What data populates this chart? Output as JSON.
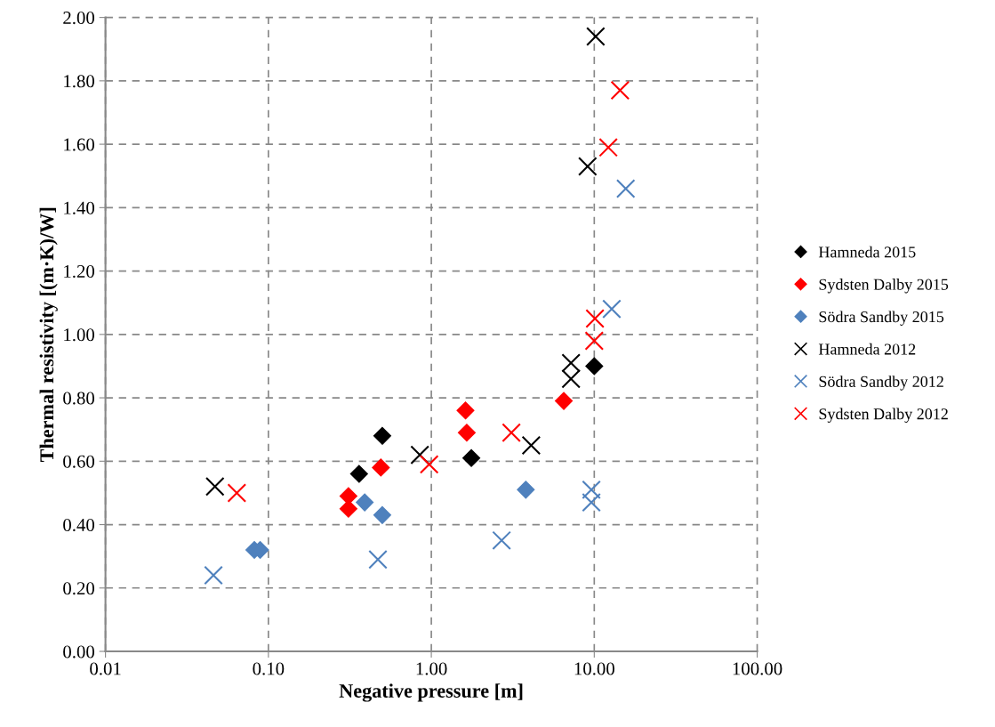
{
  "chart_data": {
    "type": "scatter",
    "xlabel": "Negative pressure [m]",
    "ylabel": "Thermal resistivity [(m·K)/W]",
    "log": "x",
    "grid": true,
    "legend": "right",
    "xlim": [
      0.01,
      100
    ],
    "xticks": [
      {
        "value": 0.01,
        "label": "0.01"
      },
      {
        "value": 0.1,
        "label": "0.10"
      },
      {
        "value": 1,
        "label": "1.00"
      },
      {
        "value": 10,
        "label": "10.00"
      },
      {
        "value": 100,
        "label": "100.00"
      }
    ],
    "ylim": [
      0,
      2
    ],
    "yticks": [
      {
        "value": 0,
        "label": "0.00"
      },
      {
        "value": 0.2,
        "label": "0.20"
      },
      {
        "value": 0.4,
        "label": "0.40"
      },
      {
        "value": 0.6,
        "label": "0.60"
      },
      {
        "value": 0.8,
        "label": "0.80"
      },
      {
        "value": 1.0,
        "label": "1.00"
      },
      {
        "value": 1.2,
        "label": "1.20"
      },
      {
        "value": 1.4,
        "label": "1.40"
      },
      {
        "value": 1.6,
        "label": "1.60"
      },
      {
        "value": 1.8,
        "label": "1.80"
      },
      {
        "value": 2.0,
        "label": "2.00"
      }
    ],
    "series": [
      {
        "name": "Hamneda 2015",
        "color": "#000000",
        "marker": "diamond",
        "x": [
          0.36,
          0.5,
          1.76,
          10.0
        ],
        "values": [
          0.56,
          0.68,
          0.61,
          0.9
        ]
      },
      {
        "name": "Sydsten Dalby 2015",
        "color": "#ff0000",
        "marker": "diamond",
        "x": [
          0.49,
          0.31,
          0.31,
          1.62,
          1.65,
          6.5
        ],
        "values": [
          0.58,
          0.49,
          0.45,
          0.76,
          0.69,
          0.79
        ]
      },
      {
        "name": "Södra Sandby 2015",
        "color": "#4f81bd",
        "marker": "diamond",
        "x": [
          0.39,
          0.5,
          0.082,
          0.089,
          3.8
        ],
        "values": [
          0.47,
          0.43,
          0.32,
          0.32,
          0.51
        ]
      },
      {
        "name": "Hamneda 2012",
        "color": "#000000",
        "marker": "cross",
        "x": [
          0.047,
          0.85,
          4.1,
          7.2,
          7.2,
          10.2,
          9.1
        ],
        "values": [
          0.52,
          0.62,
          0.65,
          0.91,
          0.86,
          1.94,
          1.53
        ]
      },
      {
        "name": "Södra Sandby 2012",
        "color": "#4f81bd",
        "marker": "cross",
        "x": [
          0.046,
          0.47,
          2.7,
          9.6,
          9.6,
          15.6,
          12.8
        ],
        "values": [
          0.24,
          0.29,
          0.35,
          0.51,
          0.47,
          1.46,
          1.08
        ]
      },
      {
        "name": "Sydsten Dalby 2012",
        "color": "#ff0000",
        "marker": "cross",
        "x": [
          0.064,
          0.97,
          3.1,
          14.4,
          12.2,
          10.1,
          10.0
        ],
        "values": [
          0.5,
          0.59,
          0.69,
          1.77,
          1.59,
          1.05,
          0.98
        ]
      }
    ]
  }
}
